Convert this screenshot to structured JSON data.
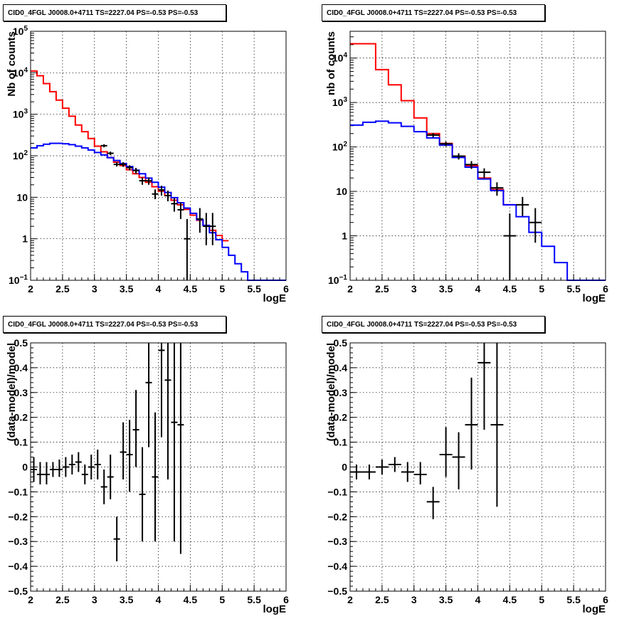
{
  "chart_data": [
    {
      "type": "line",
      "title": "CID0_4FGL J0008.0+4711 TS=2227.04 PS=-0.53 PS=-0.53",
      "xlabel": "logE",
      "ylabel": "Nb of counts",
      "xlim": [
        2,
        6
      ],
      "ylim": [
        0.1,
        100000
      ],
      "yscale": "log",
      "grid": true,
      "x_ticks": [
        "2",
        "2.5",
        "3",
        "3.5",
        "4",
        "4.5",
        "5",
        "5.5",
        "6"
      ],
      "y_ticks": [
        {
          "value": 0.1,
          "base": "10",
          "exp": "−1"
        },
        {
          "value": 1,
          "text": "1"
        },
        {
          "value": 10,
          "text": "10"
        },
        {
          "value": 100,
          "base": "10",
          "exp": "2"
        },
        {
          "value": 1000,
          "base": "10",
          "exp": "3"
        },
        {
          "value": 10000,
          "base": "10",
          "exp": "4"
        },
        {
          "value": 100000,
          "base": "10",
          "exp": "5"
        }
      ],
      "bin_edges": [
        2,
        2.1,
        2.2,
        2.3,
        2.4,
        2.5,
        2.6,
        2.7,
        2.8,
        2.9,
        3,
        3.1,
        3.2,
        3.3,
        3.4,
        3.5,
        3.6,
        3.7,
        3.8,
        3.9,
        4,
        4.1,
        4.2,
        4.3,
        4.4,
        4.5,
        4.6,
        4.7,
        4.8,
        4.9,
        5,
        5.1,
        5.2,
        5.3,
        5.4,
        5.5,
        5.6,
        5.7,
        5.8,
        5.9,
        6
      ],
      "series": [
        {
          "color": "#ff0000",
          "values": [
            11000,
            8500,
            5500,
            3500,
            2200,
            1400,
            900,
            550,
            380,
            260,
            170,
            125,
            90,
            70,
            58,
            46,
            37,
            30,
            23,
            18,
            14,
            11,
            8.5,
            6.6,
            5.1,
            3.7,
            2.8,
            2.1,
            1.6,
            1.2,
            0.9
          ]
        },
        {
          "color": "#0000ff",
          "values": [
            155,
            175,
            190,
            200,
            200,
            195,
            185,
            170,
            155,
            138,
            120,
            105,
            90,
            77,
            65,
            55,
            45,
            37,
            29,
            23,
            17.5,
            13,
            9.8,
            7.4,
            5.5,
            4.1,
            2.9,
            2.1,
            1.4,
            0.95,
            0.62,
            0.4,
            0.25,
            0.16,
            0.1,
            0.1,
            0.1,
            0.1,
            0.1,
            0.1
          ]
        }
      ],
      "points": [
        {
          "x": 3.15,
          "y": 175,
          "xerr": 0.05,
          "ylo": 160,
          "yhi": 190
        },
        {
          "x": 3.25,
          "y": 115,
          "xerr": 0.05,
          "ylo": 104,
          "yhi": 126
        },
        {
          "x": 3.35,
          "y": 62,
          "xerr": 0.05,
          "ylo": 55,
          "yhi": 70
        },
        {
          "x": 3.45,
          "y": 62,
          "xerr": 0.05,
          "ylo": 54,
          "yhi": 70
        },
        {
          "x": 3.55,
          "y": 52,
          "xerr": 0.05,
          "ylo": 45,
          "yhi": 59
        },
        {
          "x": 3.65,
          "y": 44,
          "xerr": 0.05,
          "ylo": 37,
          "yhi": 51
        },
        {
          "x": 3.75,
          "y": 25,
          "xerr": 0.05,
          "ylo": 20,
          "yhi": 30
        },
        {
          "x": 3.85,
          "y": 25,
          "xerr": 0.05,
          "ylo": 20,
          "yhi": 30
        },
        {
          "x": 3.95,
          "y": 12,
          "xerr": 0.05,
          "ylo": 9,
          "yhi": 15.5
        },
        {
          "x": 4.05,
          "y": 15,
          "xerr": 0.05,
          "ylo": 11,
          "yhi": 19
        },
        {
          "x": 4.15,
          "y": 11,
          "xerr": 0.05,
          "ylo": 8,
          "yhi": 14.5
        },
        {
          "x": 4.25,
          "y": 7,
          "xerr": 0.05,
          "ylo": 4.5,
          "yhi": 9.5
        },
        {
          "x": 4.35,
          "y": 5,
          "xerr": 0.05,
          "ylo": 3,
          "yhi": 7.5
        },
        {
          "x": 4.45,
          "y": 1,
          "xerr": 0.05,
          "ylo": 0.1,
          "yhi": 3
        },
        {
          "x": 4.65,
          "y": 3,
          "xerr": 0.05,
          "ylo": 1.4,
          "yhi": 5.5
        },
        {
          "x": 4.75,
          "y": 2,
          "xerr": 0.05,
          "ylo": 0.7,
          "yhi": 4.2
        },
        {
          "x": 4.85,
          "y": 2,
          "xerr": 0.05,
          "ylo": 0.7,
          "yhi": 4.2
        }
      ]
    },
    {
      "type": "line",
      "title": "CID0_4FGL J0008.0+4711 TS=2227.04 PS=-0.53 PS=-0.53",
      "xlabel": "logE",
      "ylabel": "nb of counts",
      "xlim": [
        2,
        6
      ],
      "ylim": [
        0.1,
        40000
      ],
      "yscale": "log",
      "grid": true,
      "x_ticks": [
        "2",
        "2.5",
        "3",
        "3.5",
        "4",
        "4.5",
        "5",
        "5.5",
        "6"
      ],
      "y_ticks": [
        {
          "value": 0.1,
          "base": "10",
          "exp": "−1"
        },
        {
          "value": 1,
          "text": "1"
        },
        {
          "value": 10,
          "text": "10"
        },
        {
          "value": 100,
          "base": "10",
          "exp": "2"
        },
        {
          "value": 1000,
          "base": "10",
          "exp": "3"
        },
        {
          "value": 10000,
          "base": "10",
          "exp": "4"
        }
      ],
      "bin_edges": [
        2,
        2.2,
        2.4,
        2.6,
        2.8,
        3,
        3.2,
        3.4,
        3.6,
        3.8,
        4,
        4.2,
        4.4,
        4.6,
        4.8,
        5,
        5.2,
        5.4,
        5.6,
        5.8,
        6
      ],
      "series": [
        {
          "color": "#ff0000",
          "values": [
            21000,
            21000,
            5500,
            2500,
            1100,
            450,
            200,
            120,
            62,
            38,
            20,
            11,
            5
          ]
        },
        {
          "color": "#0000ff",
          "values": [
            310,
            360,
            380,
            350,
            290,
            220,
            160,
            110,
            58,
            35,
            19,
            10.5,
            5,
            2.7,
            1.2,
            0.58,
            0.25,
            0.1,
            0.1,
            0.1
          ]
        }
      ],
      "points": [
        {
          "x": 3.3,
          "y": 185,
          "xerr": 0.1,
          "ylo": 165,
          "yhi": 205
        },
        {
          "x": 3.5,
          "y": 118,
          "xerr": 0.1,
          "ylo": 104,
          "yhi": 132
        },
        {
          "x": 3.7,
          "y": 62,
          "xerr": 0.1,
          "ylo": 52,
          "yhi": 72
        },
        {
          "x": 3.9,
          "y": 40,
          "xerr": 0.1,
          "ylo": 32,
          "yhi": 48
        },
        {
          "x": 4.1,
          "y": 27,
          "xerr": 0.1,
          "ylo": 20,
          "yhi": 33
        },
        {
          "x": 4.3,
          "y": 12,
          "xerr": 0.1,
          "ylo": 8,
          "yhi": 16
        },
        {
          "x": 4.5,
          "y": 1,
          "xerr": 0.1,
          "ylo": 0.1,
          "yhi": 3.2
        },
        {
          "x": 4.7,
          "y": 5,
          "xerr": 0.1,
          "ylo": 2.8,
          "yhi": 7.5
        },
        {
          "x": 4.9,
          "y": 2,
          "xerr": 0.1,
          "ylo": 0.7,
          "yhi": 4.2
        }
      ]
    },
    {
      "type": "scatter",
      "title": "CID0_4FGL J0008.0+4711 TS=2227.04 PS=-0.53 PS=-0.53",
      "xlabel": "logE",
      "ylabel": "(data-model)/model",
      "xlim": [
        2,
        6
      ],
      "ylim": [
        -0.5,
        0.5
      ],
      "yscale": "linear",
      "grid": true,
      "x_ticks": [
        "2",
        "2.5",
        "3",
        "3.5",
        "4",
        "4.5",
        "5",
        "5.5",
        "6"
      ],
      "y_ticks": [
        {
          "value": -0.5,
          "text": "−0.5"
        },
        {
          "value": -0.4,
          "text": "−0.4"
        },
        {
          "value": -0.3,
          "text": "−0.3"
        },
        {
          "value": -0.2,
          "text": "−0.2"
        },
        {
          "value": -0.1,
          "text": "−0.1"
        },
        {
          "value": 0,
          "text": "0"
        },
        {
          "value": 0.1,
          "text": "0.1"
        },
        {
          "value": 0.2,
          "text": "0.2"
        },
        {
          "value": 0.3,
          "text": "0.3"
        },
        {
          "value": 0.4,
          "text": "0.4"
        },
        {
          "value": 0.5,
          "text": "0.5"
        }
      ],
      "points": [
        {
          "x": 2.05,
          "y": -0.01,
          "xerr": 0.05,
          "ylo": -0.06,
          "yhi": 0.04
        },
        {
          "x": 2.15,
          "y": -0.03,
          "xerr": 0.05,
          "ylo": -0.07,
          "yhi": 0.02
        },
        {
          "x": 2.25,
          "y": -0.03,
          "xerr": 0.05,
          "ylo": -0.07,
          "yhi": 0.02
        },
        {
          "x": 2.35,
          "y": -0.01,
          "xerr": 0.05,
          "ylo": -0.04,
          "yhi": 0.02
        },
        {
          "x": 2.45,
          "y": -0.01,
          "xerr": 0.05,
          "ylo": -0.04,
          "yhi": 0.03
        },
        {
          "x": 2.55,
          "y": 0,
          "xerr": 0.05,
          "ylo": -0.04,
          "yhi": 0.04
        },
        {
          "x": 2.65,
          "y": 0.01,
          "xerr": 0.05,
          "ylo": -0.03,
          "yhi": 0.05
        },
        {
          "x": 2.75,
          "y": 0.02,
          "xerr": 0.05,
          "ylo": -0.02,
          "yhi": 0.06
        },
        {
          "x": 2.85,
          "y": -0.03,
          "xerr": 0.05,
          "ylo": -0.07,
          "yhi": 0.01
        },
        {
          "x": 2.95,
          "y": 0,
          "xerr": 0.05,
          "ylo": -0.05,
          "yhi": 0.05
        },
        {
          "x": 3.05,
          "y": 0.01,
          "xerr": 0.05,
          "ylo": -0.05,
          "yhi": 0.07
        },
        {
          "x": 3.15,
          "y": -0.08,
          "xerr": 0.05,
          "ylo": -0.15,
          "yhi": -0.01
        },
        {
          "x": 3.25,
          "y": -0.04,
          "xerr": 0.05,
          "ylo": -0.13,
          "yhi": 0.05
        },
        {
          "x": 3.35,
          "y": -0.29,
          "xerr": 0.05,
          "ylo": -0.38,
          "yhi": -0.2
        },
        {
          "x": 3.45,
          "y": 0.06,
          "xerr": 0.05,
          "ylo": -0.05,
          "yhi": 0.18
        },
        {
          "x": 3.55,
          "y": 0.05,
          "xerr": 0.05,
          "ylo": -0.1,
          "yhi": 0.19
        },
        {
          "x": 3.65,
          "y": 0.15,
          "xerr": 0.05,
          "ylo": 0.0,
          "yhi": 0.31
        },
        {
          "x": 3.75,
          "y": -0.11,
          "xerr": 0.05,
          "ylo": -0.3,
          "yhi": 0.08
        },
        {
          "x": 3.85,
          "y": 0.34,
          "xerr": 0.05,
          "ylo": 0.08,
          "yhi": 0.5
        },
        {
          "x": 3.95,
          "y": -0.04,
          "xerr": 0.05,
          "ylo": -0.3,
          "yhi": 0.22
        },
        {
          "x": 4.05,
          "y": 0.47,
          "xerr": 0.05,
          "ylo": 0.12,
          "yhi": 0.5
        },
        {
          "x": 4.15,
          "y": 0.35,
          "xerr": 0.05,
          "ylo": -0.05,
          "yhi": 0.5
        },
        {
          "x": 4.25,
          "y": 0.18,
          "xerr": 0.05,
          "ylo": -0.3,
          "yhi": 0.5
        },
        {
          "x": 4.35,
          "y": 0.17,
          "xerr": 0.05,
          "ylo": -0.35,
          "yhi": 0.5
        }
      ]
    },
    {
      "type": "scatter",
      "title": "CID0_4FGL J0008.0+4711 TS=2227.04 PS=-0.53 PS=-0.53",
      "xlabel": "logE",
      "ylabel": "(data-model)/model",
      "xlim": [
        2,
        6
      ],
      "ylim": [
        -0.5,
        0.5
      ],
      "yscale": "linear",
      "grid": true,
      "x_ticks": [
        "2",
        "2.5",
        "3",
        "3.5",
        "4",
        "4.5",
        "5",
        "5.5",
        "6"
      ],
      "y_ticks": [
        {
          "value": -0.5,
          "text": "−0.5"
        },
        {
          "value": -0.4,
          "text": "−0.4"
        },
        {
          "value": -0.3,
          "text": "−0.3"
        },
        {
          "value": -0.2,
          "text": "−0.2"
        },
        {
          "value": -0.1,
          "text": "−0.1"
        },
        {
          "value": 0,
          "text": "0"
        },
        {
          "value": 0.1,
          "text": "0.1"
        },
        {
          "value": 0.2,
          "text": "0.2"
        },
        {
          "value": 0.3,
          "text": "0.3"
        },
        {
          "value": 0.4,
          "text": "0.4"
        },
        {
          "value": 0.5,
          "text": "0.5"
        }
      ],
      "points": [
        {
          "x": 2.1,
          "y": -0.02,
          "xerr": 0.1,
          "ylo": -0.05,
          "yhi": 0.01
        },
        {
          "x": 2.3,
          "y": -0.02,
          "xerr": 0.1,
          "ylo": -0.05,
          "yhi": 0.01
        },
        {
          "x": 2.5,
          "y": 0,
          "xerr": 0.1,
          "ylo": -0.03,
          "yhi": 0.03
        },
        {
          "x": 2.7,
          "y": 0.01,
          "xerr": 0.1,
          "ylo": -0.02,
          "yhi": 0.04
        },
        {
          "x": 2.9,
          "y": -0.02,
          "xerr": 0.1,
          "ylo": -0.06,
          "yhi": 0.02
        },
        {
          "x": 3.1,
          "y": -0.03,
          "xerr": 0.1,
          "ylo": -0.07,
          "yhi": 0.02
        },
        {
          "x": 3.3,
          "y": -0.14,
          "xerr": 0.1,
          "ylo": -0.21,
          "yhi": -0.08
        },
        {
          "x": 3.5,
          "y": 0.05,
          "xerr": 0.1,
          "ylo": -0.04,
          "yhi": 0.16
        },
        {
          "x": 3.7,
          "y": 0.04,
          "xerr": 0.1,
          "ylo": -0.09,
          "yhi": 0.14
        },
        {
          "x": 3.9,
          "y": 0.17,
          "xerr": 0.1,
          "ylo": -0.01,
          "yhi": 0.36
        },
        {
          "x": 4.1,
          "y": 0.42,
          "xerr": 0.1,
          "ylo": 0.15,
          "yhi": 0.5
        },
        {
          "x": 4.3,
          "y": 0.17,
          "xerr": 0.1,
          "ylo": -0.16,
          "yhi": 0.5
        }
      ]
    }
  ]
}
